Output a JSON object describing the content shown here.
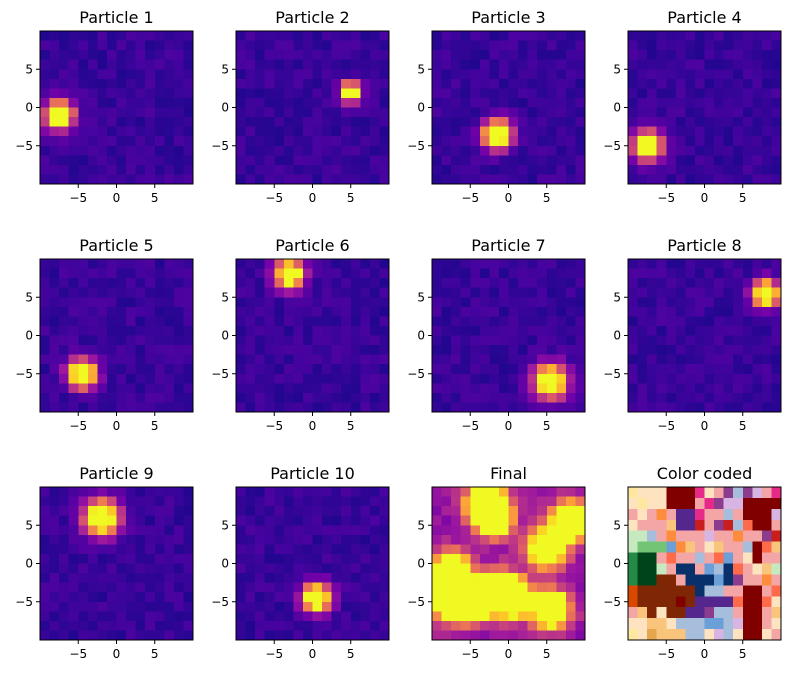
{
  "figure": {
    "background": "#ffffff",
    "colormap_name": "plasma",
    "colormap_stops": [
      "#0d0887",
      "#46039f",
      "#7201a8",
      "#9c179e",
      "#bd3786",
      "#d8576b",
      "#ed7953",
      "#fb9f3a",
      "#fdca26",
      "#f0f921"
    ]
  },
  "chart_data": [
    {
      "type": "heatmap",
      "title": "Particle 1",
      "colormap": "plasma",
      "grid": false,
      "xlim": [
        -10,
        10
      ],
      "ylim": [
        -10,
        10
      ],
      "xticks": [
        -5,
        0,
        5
      ],
      "yticks": [
        5,
        0,
        -5
      ],
      "xtick_labels": [
        "−5",
        "0",
        "5"
      ],
      "ytick_labels": [
        "5",
        "0",
        "−5"
      ],
      "peaks": [
        {
          "x": -7.5,
          "y": -1.0
        }
      ],
      "peak_spread": 1.3
    },
    {
      "type": "heatmap",
      "title": "Particle 2",
      "colormap": "plasma",
      "grid": false,
      "xlim": [
        -10,
        10
      ],
      "ylim": [
        -10,
        10
      ],
      "xticks": [
        -5,
        0,
        5
      ],
      "yticks": [
        5,
        0,
        -5
      ],
      "xtick_labels": [
        "−5",
        "0",
        "5"
      ],
      "ytick_labels": [
        "5",
        "0",
        "−5"
      ],
      "peaks": [
        {
          "x": 5.0,
          "y": 2.0
        }
      ],
      "peak_spread": 0.9
    },
    {
      "type": "heatmap",
      "title": "Particle 3",
      "colormap": "plasma",
      "grid": false,
      "xlim": [
        -10,
        10
      ],
      "ylim": [
        -10,
        10
      ],
      "xticks": [
        -5,
        0,
        5
      ],
      "yticks": [
        5,
        0,
        -5
      ],
      "xtick_labels": [
        "−5",
        "0",
        "5"
      ],
      "ytick_labels": [
        "5",
        "0",
        "−5"
      ],
      "peaks": [
        {
          "x": -1.5,
          "y": -3.5
        }
      ],
      "peak_spread": 1.3
    },
    {
      "type": "heatmap",
      "title": "Particle 4",
      "colormap": "plasma",
      "grid": false,
      "xlim": [
        -10,
        10
      ],
      "ylim": [
        -10,
        10
      ],
      "xticks": [
        -5,
        0,
        5
      ],
      "yticks": [
        5,
        0,
        -5
      ],
      "xtick_labels": [
        "−5",
        "0",
        "5"
      ],
      "ytick_labels": [
        "5",
        "0",
        "−5"
      ],
      "peaks": [
        {
          "x": -7.5,
          "y": -5.0
        }
      ],
      "peak_spread": 1.3
    },
    {
      "type": "heatmap",
      "title": "Particle 5",
      "colormap": "plasma",
      "grid": false,
      "xlim": [
        -10,
        10
      ],
      "ylim": [
        -10,
        10
      ],
      "xticks": [
        -5,
        0,
        5
      ],
      "yticks": [
        5,
        0,
        -5
      ],
      "xtick_labels": [
        "−5",
        "0",
        "5"
      ],
      "ytick_labels": [
        "5",
        "0",
        "−5"
      ],
      "peaks": [
        {
          "x": -4.5,
          "y": -5.0
        }
      ],
      "peak_spread": 1.3
    },
    {
      "type": "heatmap",
      "title": "Particle 6",
      "colormap": "plasma",
      "grid": false,
      "xlim": [
        -10,
        10
      ],
      "ylim": [
        -10,
        10
      ],
      "xticks": [
        -5,
        0,
        5
      ],
      "yticks": [
        5,
        0,
        -5
      ],
      "xtick_labels": [
        "−5",
        "0",
        "5"
      ],
      "ytick_labels": [
        "5",
        "0",
        "−5"
      ],
      "peaks": [
        {
          "x": -3.0,
          "y": 8.0
        }
      ],
      "peak_spread": 1.3
    },
    {
      "type": "heatmap",
      "title": "Particle 7",
      "colormap": "plasma",
      "grid": false,
      "xlim": [
        -10,
        10
      ],
      "ylim": [
        -10,
        10
      ],
      "xticks": [
        -5,
        0,
        5
      ],
      "yticks": [
        5,
        0,
        -5
      ],
      "xtick_labels": [
        "−5",
        "0",
        "5"
      ],
      "ytick_labels": [
        "5",
        "0",
        "−5"
      ],
      "peaks": [
        {
          "x": 5.5,
          "y": -6.0
        }
      ],
      "peak_spread": 1.5
    },
    {
      "type": "heatmap",
      "title": "Particle 8",
      "colormap": "plasma",
      "grid": false,
      "xlim": [
        -10,
        10
      ],
      "ylim": [
        -10,
        10
      ],
      "xticks": [
        -5,
        0,
        5
      ],
      "yticks": [
        5,
        0,
        -5
      ],
      "xtick_labels": [
        "−5",
        "0",
        "5"
      ],
      "ytick_labels": [
        "5",
        "0",
        "−5"
      ],
      "peaks": [
        {
          "x": 8.0,
          "y": 5.5
        }
      ],
      "peak_spread": 1.2
    },
    {
      "type": "heatmap",
      "title": "Particle 9",
      "colormap": "plasma",
      "grid": false,
      "xlim": [
        -10,
        10
      ],
      "ylim": [
        -10,
        10
      ],
      "xticks": [
        -5,
        0,
        5
      ],
      "yticks": [
        5,
        0,
        -5
      ],
      "xtick_labels": [
        "−5",
        "0",
        "5"
      ],
      "ytick_labels": [
        "5",
        "0",
        "−5"
      ],
      "peaks": [
        {
          "x": -2.0,
          "y": 6.0
        }
      ],
      "peak_spread": 1.6
    },
    {
      "type": "heatmap",
      "title": "Particle 10",
      "colormap": "plasma",
      "grid": false,
      "xlim": [
        -10,
        10
      ],
      "ylim": [
        -10,
        10
      ],
      "xticks": [
        -5,
        0,
        5
      ],
      "yticks": [
        5,
        0,
        -5
      ],
      "xtick_labels": [
        "−5",
        "0",
        "5"
      ],
      "ytick_labels": [
        "5",
        "0",
        "−5"
      ],
      "peaks": [
        {
          "x": 0.5,
          "y": -4.5
        }
      ],
      "peak_spread": 1.3
    },
    {
      "type": "heatmap",
      "title": "Final",
      "colormap": "plasma",
      "grid": false,
      "xlim": [
        -10,
        10
      ],
      "ylim": [
        -10,
        10
      ],
      "xticks": [
        -5,
        0,
        5
      ],
      "yticks": [
        5,
        0,
        -5
      ],
      "xtick_labels": [
        "−5",
        "0",
        "5"
      ],
      "ytick_labels": [
        "5",
        "0",
        "−5"
      ],
      "description": "sum of all particle distributions",
      "peaks": [
        {
          "x": -7.5,
          "y": -1.0
        },
        {
          "x": 5.0,
          "y": 2.0
        },
        {
          "x": -1.5,
          "y": -3.5
        },
        {
          "x": -7.5,
          "y": -5.0
        },
        {
          "x": -4.5,
          "y": -5.0
        },
        {
          "x": -3.0,
          "y": 8.0
        },
        {
          "x": 5.5,
          "y": -6.0
        },
        {
          "x": 8.0,
          "y": 5.5
        },
        {
          "x": -2.0,
          "y": 6.0
        },
        {
          "x": 0.5,
          "y": -4.5
        }
      ],
      "peak_spread": 1.6
    },
    {
      "type": "heatmap",
      "title": "Color coded",
      "grid": false,
      "xlim": [
        -10,
        10
      ],
      "ylim": [
        -10,
        10
      ],
      "xticks": [
        -5,
        0,
        5
      ],
      "yticks": [
        5,
        0,
        -5
      ],
      "xtick_labels": [
        "−5",
        "0",
        "5"
      ],
      "ytick_labels": [
        "5",
        "0",
        "−5"
      ],
      "description": "each cell colored by the dominant particle",
      "palette": [
        "#ffffff",
        "#fde3c0",
        "#f9c47c",
        "#fd8d3c",
        "#d94801",
        "#7f2704",
        "#800000",
        "#c81e1e",
        "#ff6b4a",
        "#f4a6a6",
        "#e7298a",
        "#c994c7",
        "#54278f",
        "#8c3c8c",
        "#d8b4e2",
        "#a6bddb",
        "#6a9fd8",
        "#08306b",
        "#c7e9c0",
        "#74c476",
        "#238b45",
        "#00441b",
        "#fee8a0",
        "#e6a64b"
      ],
      "cells": [
        [
          22,
          1,
          1,
          1,
          6,
          6,
          6,
          10,
          1,
          9,
          13,
          15,
          13,
          14,
          9,
          10
        ],
        [
          1,
          22,
          1,
          1,
          6,
          6,
          6,
          9,
          10,
          13,
          14,
          14,
          6,
          6,
          6,
          6
        ],
        [
          9,
          1,
          9,
          3,
          9,
          12,
          12,
          10,
          9,
          9,
          15,
          9,
          6,
          6,
          6,
          14
        ],
        [
          1,
          9,
          9,
          9,
          2,
          12,
          12,
          7,
          9,
          13,
          7,
          15,
          8,
          6,
          6,
          9
        ],
        [
          18,
          18,
          15,
          9,
          3,
          9,
          9,
          9,
          14,
          9,
          9,
          3,
          9,
          9,
          13,
          7
        ],
        [
          18,
          19,
          19,
          19,
          16,
          3,
          2,
          9,
          1,
          2,
          9,
          9,
          15,
          6,
          8,
          2
        ],
        [
          20,
          21,
          21,
          9,
          8,
          9,
          9,
          15,
          9,
          8,
          16,
          9,
          1,
          6,
          9,
          9
        ],
        [
          20,
          21,
          21,
          18,
          9,
          17,
          17,
          9,
          16,
          15,
          17,
          8,
          9,
          1,
          2,
          18
        ],
        [
          20,
          21,
          21,
          5,
          5,
          9,
          17,
          17,
          17,
          16,
          17,
          13,
          9,
          9,
          3,
          9
        ],
        [
          4,
          5,
          5,
          5,
          5,
          5,
          5,
          17,
          15,
          15,
          9,
          9,
          6,
          6,
          9,
          8
        ],
        [
          4,
          5,
          5,
          5,
          5,
          6,
          5,
          12,
          12,
          12,
          12,
          8,
          6,
          6,
          8,
          1
        ],
        [
          9,
          2,
          5,
          1,
          5,
          5,
          12,
          12,
          13,
          15,
          15,
          9,
          6,
          6,
          9,
          2
        ],
        [
          1,
          1,
          2,
          2,
          1,
          15,
          15,
          15,
          16,
          16,
          15,
          14,
          6,
          6,
          9,
          1
        ],
        [
          22,
          1,
          23,
          2,
          2,
          2,
          15,
          15,
          1,
          14,
          15,
          1,
          6,
          6,
          1,
          9
        ]
      ]
    }
  ]
}
